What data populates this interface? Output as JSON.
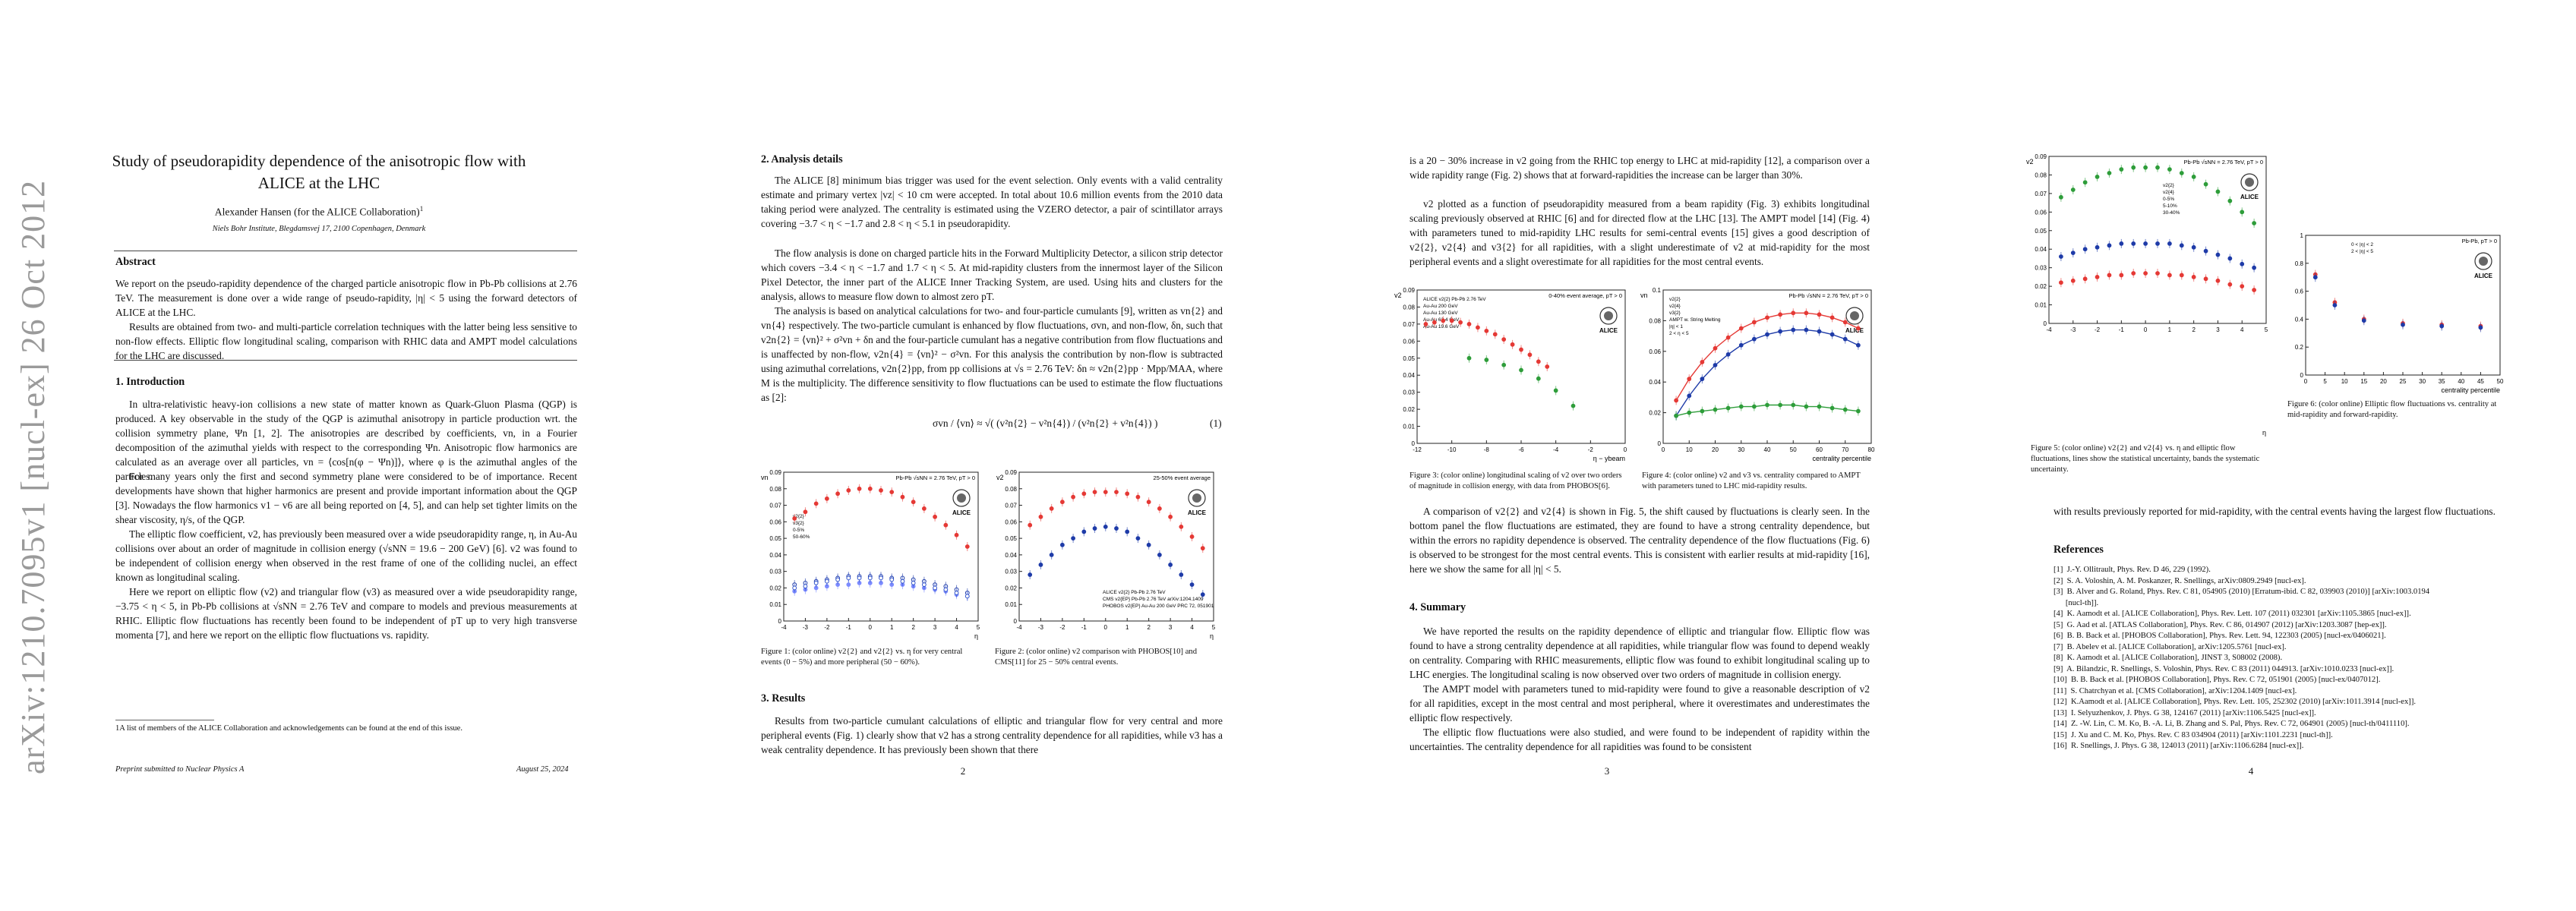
{
  "arxiv_stamp": "arXiv:1210.7095v1  [nucl-ex]  26 Oct 2012",
  "page1": {
    "title": "Study of pseudorapidity dependence of the anisotropic flow with ALICE at the LHC",
    "author": "Alexander Hansen (for the ALICE Collaboration)",
    "author_mark": "1",
    "affiliation": "Niels Bohr Institute, Blegdamsvej 17, 2100 Copenhagen, Denmark",
    "abstract_head": "Abstract",
    "abstract_p1": "We report on the pseudo-rapidity dependence of the charged particle anisotropic flow in Pb-Pb collisions at 2.76 TeV. The measurement is done over a wide range of pseudo-rapidity, |η| < 5 using the forward detectors of ALICE at the LHC.",
    "abstract_p2": "Results are obtained from two- and multi-particle correlation techniques with the latter being less sensitive to non-flow effects. Elliptic flow longitudinal scaling, comparison with RHIC data and AMPT model calculations for the LHC are discussed.",
    "intro_head": "1.  Introduction",
    "intro_p1": "In ultra-relativistic heavy-ion collisions a new state of matter known as Quark-Gluon Plasma (QGP) is produced. A key observable in the study of the QGP is azimuthal anisotropy in particle production wrt. the collision symmetry plane, Ψn [1, 2]. The anisotropies are described by coefficients, vn, in a Fourier decomposition of the azimuthal yields with respect to the corresponding Ψn. Anisotropic flow harmonics are calculated as an average over all particles, vn = ⟨cos[n(φ − Ψn)]⟩, where φ is the azimuthal angles of the particles.",
    "intro_p2": "For many years only the first and second symmetry plane were considered to be of importance. Recent developments have shown that higher harmonics are present and provide important information about the QGP [3]. Nowadays the flow harmonics v1 − v6 are all being reported on [4, 5], and can help set tighter limits on the shear viscosity, η/s, of the QGP.",
    "intro_p3": "The elliptic flow coefficient, v2, has previously been measured over a wide pseudorapidity range, η, in Au-Au collisions over about an order of magnitude in collision energy (√sNN = 19.6 − 200 GeV) [6]. v2 was found to be independent of collision energy when observed in the rest frame of one of the colliding nuclei, an effect known as longitudinal scaling.",
    "intro_p4": "Here we report on elliptic flow (v2) and triangular flow (v3) as measured over a wide pseudorapidity range, −3.75 < η < 5, in Pb-Pb collisions at √sNN = 2.76 TeV and compare to models and previous measurements at RHIC. Elliptic flow fluctuations has recently been found to be independent of pT up to very high transverse momenta [7], and here we report on the elliptic flow fluctuations vs. rapidity.",
    "footnote": "1A list of members of the ALICE Collaboration and acknowledgements can be found at the end of this issue.",
    "footer_left": "Preprint submitted to Nuclear Physics A",
    "footer_right": "August 25, 2024"
  },
  "page2": {
    "head": "2.  Analysis details",
    "p1": "The ALICE [8] minimum bias trigger was used for the event selection. Only events with a valid centrality estimate and primary vertex |vz| < 10 cm were accepted. In total about 10.6 million events from the 2010 data taking period were analyzed. The centrality is estimated using the VZERO detector, a pair of scintillator arrays covering −3.7 < η < −1.7 and 2.8 < η < 5.1 in pseudorapidity.",
    "p2": "The flow analysis is done on charged particle hits in the Forward Multiplicity Detector, a silicon strip detector which covers −3.4 < η < −1.7 and 1.7 < η < 5. At mid-rapidity clusters from the innermost layer of the Silicon Pixel Detector, the inner part of the ALICE Inner Tracking System, are used. Using hits and clusters for the analysis, allows to measure flow down to almost zero pT.",
    "p3": "The analysis is based on analytical calculations for two- and four-particle cumulants [9], written as vn{2} and vn{4} respectively. The two-particle cumulant is enhanced by flow fluctuations, σvn, and non-flow, δn, such that v2n{2} = ⟨vn⟩² + σ²vn + δn and the four-particle cumulant has a negative contribution from flow fluctuations and is unaffected by non-flow, v2n{4} = ⟨vn⟩² − σ²vn. For this analysis the contribution by non-flow is subtracted using azimuthal correlations, v2n{2}pp, from pp collisions at √s = 2.76 TeV: δn ≈ v2n{2}pp · Mpp/MAA, where M is the multiplicity. The difference sensitivity to flow fluctuations can be used to estimate the flow fluctuations as [2]:",
    "equation": "σvn / ⟨vn⟩ ≈ √( (v²n{2} − v²n{4}) / (v²n{2} + v²n{4}) )",
    "eq_num": "(1)",
    "fig1_caption": "Figure 1: (color online) v2{2} and v2{2} vs. η for very central events (0 − 5%) and more peripheral (50 − 60%).",
    "fig2_caption": "Figure 2: (color online) v2 comparison with PHOBOS[10] and CMS[11] for 25 − 50% central events.",
    "results_head": "3.  Results",
    "results_p1": "Results from two-particle cumulant calculations of elliptic and triangular flow for very central and more peripheral events (Fig. 1) clearly show that v2 has a strong centrality dependence for all rapidities, while v3 has a weak centrality dependence. It has previously been shown that there",
    "page_num": "2"
  },
  "page3": {
    "p1": "is a 20 − 30% increase in v2 going from the RHIC top energy to LHC at mid-rapidity [12], a comparison over a wide rapidity range (Fig. 2) shows that at forward-rapidities the increase can be larger than 30%.",
    "p2": "v2 plotted as a function of pseudorapidity measured from a beam rapidity (Fig. 3) exhibits longitudinal scaling previously observed at RHIC [6] and for directed flow at the LHC [13]. The AMPT model [14] (Fig. 4) with parameters tuned to mid-rapidity LHC results for semi-central events [15] gives a good description of v2{2}, v2{4} and v3{2} for all rapidities, with a slight underestimate of v2 at mid-rapidity for the most peripheral events and a slight overestimate for all rapidities for the most central events.",
    "fig3_caption": "Figure 3: (color online) longitudinal scaling of v2 over two orders of magnitude in collision energy, with data from PHOBOS[6].",
    "fig4_caption": "Figure 4: (color online) v2 and v3 vs. centrality compared to AMPT with parameters tuned to LHC mid-rapidity results.",
    "p3": "A comparison of v2{2} and v2{4} is shown in Fig. 5, the shift caused by fluctuations is clearly seen. In the bottom panel the flow fluctuations are estimated, they are found to have a strong centrality dependence, but within the errors no rapidity dependence is observed. The centrality dependence of the flow fluctuations (Fig. 6) is observed to be strongest for the most central events. This is consistent with earlier results at mid-rapidity [16], here we show the same for all |η| < 5.",
    "summary_head": "4.  Summary",
    "s1": "We have reported the results on the rapidity dependence of elliptic and triangular flow. Elliptic flow was found to have a strong centrality dependence at all rapidities, while triangular flow was found to depend weakly on centrality. Comparing with RHIC measurements, elliptic flow was found to exhibit longitudinal scaling up to LHC energies. The longitudinal scaling is now observed over two orders of magnitude in collision energy.",
    "s2": "The AMPT model with parameters tuned to mid-rapidity were found to give a reasonable description of v2 for all rapidities, except in the most central and most peripheral, where it overestimates and underestimates the elliptic flow respectively.",
    "s3": "The elliptic flow fluctuations were also studied, and were found to be independent of rapidity within the uncertainties. The centrality dependence for all rapidities was found to be consistent",
    "page_num": "3"
  },
  "page4": {
    "fig5_caption": "Figure 5: (color online) v2{2} and v2{4} vs. η and elliptic flow fluctuations, lines show the statistical uncertainty, bands the systematic uncertainty.",
    "fig6_caption": "Figure 6: (color online) Elliptic flow fluctuations vs. centrality at mid-rapidity and forward-rapidity.",
    "p1": "with results previously reported for mid-rapidity, with the central events having the largest flow fluctuations.",
    "refs_head": "References",
    "refs": [
      "[1]  J.-Y. Ollitrault, Phys. Rev. D 46, 229 (1992).",
      "[2]  S. A. Voloshin, A. M. Poskanzer, R. Snellings, arXiv:0809.2949 [nucl-ex].",
      "[3]  B. Alver and G. Roland, Phys. Rev. C 81, 054905 (2010) [Erratum-ibid. C 82, 039903 (2010)] [arXiv:1003.0194",
      "      [nucl-th]].",
      "[4]  K. Aamodt et al. [ALICE Collaboration], Phys. Rev. Lett. 107 (2011) 032301 [arXiv:1105.3865 [nucl-ex]].",
      "[5]  G. Aad et al. [ATLAS Collaboration], Phys. Rev. C 86, 014907 (2012) [arXiv:1203.3087 [hep-ex]].",
      "[6]  B. B. Back et al. [PHOBOS Collaboration], Phys. Rev. Lett. 94, 122303 (2005) [nucl-ex/0406021].",
      "[7]  B. Abelev et al. [ALICE Collaboration], arXiv:1205.5761 [nucl-ex].",
      "[8]  K. Aamodt et al. [ALICE Collaboration], JINST 3, S08002 (2008).",
      "[9]  A. Bilandzic, R. Snellings, S. Voloshin, Phys. Rev. C 83 (2011) 044913. [arXiv:1010.0233 [nucl-ex]].",
      "[10]  B. B. Back et al. [PHOBOS Collaboration], Phys. Rev. C 72, 051901 (2005) [nucl-ex/0407012].",
      "[11]  S. Chatrchyan et al. [CMS Collaboration], arXiv:1204.1409 [nucl-ex].",
      "[12]  K.Aamodt et al. [ALICE Collaboration], Phys. Rev. Lett. 105, 252302 (2010) [arXiv:1011.3914 [nucl-ex]].",
      "[13]  I. Selyuzhenkov, J. Phys. G 38, 124167 (2011) [arXiv:1106.5425 [nucl-ex]].",
      "[14]  Z. -W. Lin, C. M. Ko, B. -A. Li, B. Zhang and S. Pal, Phys. Rev. C 72, 064901 (2005) [nucl-th/0411110].",
      "[15]  J. Xu and C. M. Ko, Phys. Rev. C 83 034904 (2011) [arXiv:1101.2231 [nucl-th]].",
      "[16]  R. Snellings, J. Phys. G 38, 124013 (2011) [arXiv:1106.6284 [nucl-ex]]."
    ],
    "page_num": "4"
  },
  "chart_data": [
    {
      "type": "scatter",
      "name_ref": "fig1",
      "ylabel": "vn",
      "xlabel": "η",
      "ylim": [
        0,
        0.09
      ],
      "xlim": [
        -4,
        5
      ],
      "legend": [
        "v2{2}",
        "v3{2}",
        "0-5%",
        "50-60%"
      ],
      "annotation": "Pb-Pb √sNN = 2.76 TeV, pT > 0",
      "x": [
        -3.5,
        -3,
        -2.5,
        -2,
        -1.5,
        -1,
        -0.5,
        0,
        0.5,
        1,
        1.5,
        2,
        2.5,
        3,
        3.5,
        4,
        4.5
      ],
      "series": [
        {
          "name": "v2{2} 50-60%",
          "values": [
            0.062,
            0.066,
            0.071,
            0.074,
            0.077,
            0.079,
            0.08,
            0.08,
            0.079,
            0.078,
            0.075,
            0.072,
            0.068,
            0.063,
            0.058,
            0.052,
            0.045
          ]
        },
        {
          "name": "v2{2} 0-5%",
          "values": [
            0.022,
            0.023,
            0.024,
            0.025,
            0.026,
            0.027,
            0.027,
            0.027,
            0.027,
            0.026,
            0.026,
            0.025,
            0.024,
            0.022,
            0.021,
            0.019,
            0.017
          ]
        },
        {
          "name": "v3{2} 0-5%",
          "values": [
            0.018,
            0.019,
            0.02,
            0.021,
            0.022,
            0.022,
            0.023,
            0.023,
            0.023,
            0.022,
            0.022,
            0.021,
            0.02,
            0.019,
            0.018,
            0.016,
            0.015
          ]
        },
        {
          "name": "v3{2} 50-60%",
          "values": [
            0.02,
            0.021,
            0.023,
            0.024,
            0.025,
            0.026,
            0.026,
            0.026,
            0.026,
            0.025,
            0.024,
            0.023,
            0.022,
            0.02,
            0.019,
            0.017,
            0.015
          ]
        }
      ]
    },
    {
      "type": "scatter",
      "name_ref": "fig2",
      "ylabel": "v2",
      "xlabel": "η",
      "ylim": [
        0,
        0.09
      ],
      "xlim": [
        -4,
        5
      ],
      "annotation": "25-50% event average",
      "legend": [
        "ALICE v2{2} Pb-Pb 2.76 TeV",
        "CMS v2{EP} Pb-Pb 2.76 TeV arXiv:1204.1409",
        "PHOBOS v2{EP} Au-Au 200 GeV PRC 72, 051901"
      ],
      "x": [
        -3.5,
        -3,
        -2.5,
        -2,
        -1.5,
        -1,
        -0.5,
        0,
        0.5,
        1,
        1.5,
        2,
        2.5,
        3,
        3.5,
        4,
        4.5
      ],
      "series": [
        {
          "name": "ALICE v2{2}",
          "values": [
            0.058,
            0.063,
            0.068,
            0.072,
            0.075,
            0.077,
            0.078,
            0.078,
            0.078,
            0.077,
            0.075,
            0.072,
            0.068,
            0.063,
            0.057,
            0.051,
            0.044
          ]
        },
        {
          "name": "PHOBOS v2{EP}",
          "values": [
            0.028,
            0.034,
            0.04,
            0.046,
            0.05,
            0.054,
            0.056,
            0.057,
            0.056,
            0.054,
            0.05,
            0.046,
            0.04,
            0.034,
            0.028,
            0.022,
            0.016
          ]
        }
      ]
    },
    {
      "type": "scatter",
      "name_ref": "fig3",
      "ylabel": "v2",
      "xlabel": "η − ybeam",
      "ylim": [
        0,
        0.09
      ],
      "xlim": [
        -12,
        0
      ],
      "annotation": "0-40% event average, pT > 0",
      "legend": [
        "ALICE v2{2} Pb-Pb 2.76 TeV",
        "Au-Au 200 GeV",
        "Au-Au 130 GeV",
        "Au-Au 62.4 GeV",
        "Au-Au 19.6 GeV"
      ],
      "series": [
        {
          "name": "ALICE v2{2}",
          "x": [
            -11.5,
            -11,
            -10.5,
            -10,
            -9.5,
            -9,
            -8.5,
            -8,
            -7.5,
            -7,
            -6.5,
            -6,
            -5.5,
            -5,
            -4.5
          ],
          "values": [
            0.07,
            0.071,
            0.072,
            0.072,
            0.071,
            0.07,
            0.068,
            0.066,
            0.064,
            0.061,
            0.058,
            0.055,
            0.052,
            0.048,
            0.045
          ]
        },
        {
          "name": "Au-Au 200 GeV",
          "x": [
            -9,
            -8,
            -7,
            -6,
            -5,
            -4,
            -3
          ],
          "values": [
            0.05,
            0.049,
            0.046,
            0.043,
            0.038,
            0.031,
            0.022
          ]
        }
      ]
    },
    {
      "type": "line",
      "name_ref": "fig4",
      "ylabel": "vn",
      "xlabel": "centrality percentile",
      "ylim": [
        0,
        0.1
      ],
      "xlim": [
        0,
        80
      ],
      "annotation": "Pb-Pb √sNN = 2.76 TeV, pT > 0",
      "legend": [
        "v2{2}",
        "v2{4}",
        "v3{2}",
        "AMPT w. String Melting",
        "|η| < 1",
        "2 < η < 5"
      ],
      "x": [
        5,
        10,
        15,
        20,
        25,
        30,
        35,
        40,
        45,
        50,
        55,
        60,
        65,
        70,
        75
      ],
      "series": [
        {
          "name": "v2{2}",
          "values": [
            0.028,
            0.042,
            0.053,
            0.062,
            0.069,
            0.075,
            0.079,
            0.082,
            0.084,
            0.085,
            0.085,
            0.084,
            0.082,
            0.079,
            0.075
          ]
        },
        {
          "name": "v2{4}",
          "values": [
            0.018,
            0.031,
            0.042,
            0.051,
            0.058,
            0.064,
            0.068,
            0.071,
            0.073,
            0.074,
            0.074,
            0.073,
            0.071,
            0.068,
            0.064
          ]
        },
        {
          "name": "v3{2}",
          "values": [
            0.018,
            0.02,
            0.021,
            0.022,
            0.023,
            0.024,
            0.024,
            0.025,
            0.025,
            0.025,
            0.024,
            0.024,
            0.023,
            0.022,
            0.021
          ]
        }
      ]
    },
    {
      "type": "scatter",
      "name_ref": "fig5",
      "ylabel": "v2",
      "xlabel": "η",
      "ylim": [
        0,
        0.09
      ],
      "xlim": [
        -4,
        5
      ],
      "annotation": "Pb-Pb √sNN = 2.76 TeV, pT > 0",
      "legend": [
        "v2{2}",
        "v2{4}",
        "0-5%",
        "5-10%",
        "30-40%"
      ],
      "x": [
        -3.5,
        -3,
        -2.5,
        -2,
        -1.5,
        -1,
        -0.5,
        0,
        0.5,
        1,
        1.5,
        2,
        2.5,
        3,
        3.5,
        4,
        4.5
      ],
      "series": [
        {
          "name": "v2{2} 30-40%",
          "values": [
            0.068,
            0.072,
            0.076,
            0.079,
            0.081,
            0.083,
            0.084,
            0.084,
            0.084,
            0.083,
            0.081,
            0.079,
            0.075,
            0.071,
            0.066,
            0.06,
            0.054
          ]
        },
        {
          "name": "v2{2} 5-10%",
          "values": [
            0.036,
            0.038,
            0.04,
            0.041,
            0.042,
            0.043,
            0.043,
            0.043,
            0.043,
            0.043,
            0.042,
            0.041,
            0.039,
            0.037,
            0.035,
            0.032,
            0.03
          ]
        },
        {
          "name": "v2{2} 0-5%",
          "values": [
            0.022,
            0.023,
            0.024,
            0.025,
            0.026,
            0.026,
            0.027,
            0.027,
            0.027,
            0.026,
            0.026,
            0.025,
            0.024,
            0.023,
            0.021,
            0.02,
            0.018
          ]
        }
      ]
    },
    {
      "type": "scatter",
      "name_ref": "fig6",
      "ylabel": "√(v2{2}² − v2{4}²)/(v2{2}² + v2{4}²)",
      "xlabel": "centrality percentile",
      "ylim": [
        0,
        1
      ],
      "xlim": [
        0,
        50
      ],
      "annotation": "Pb-Pb, pT > 0",
      "legend": [
        "0 < |η| < 2",
        "2 < |η| < 5"
      ],
      "x": [
        2.5,
        7.5,
        15,
        25,
        35,
        45
      ],
      "series": [
        {
          "name": "0 < |η| < 2",
          "values": [
            0.72,
            0.52,
            0.4,
            0.37,
            0.36,
            0.35
          ]
        },
        {
          "name": "2 < |η| < 5",
          "values": [
            0.7,
            0.5,
            0.39,
            0.36,
            0.35,
            0.34
          ]
        }
      ]
    }
  ]
}
